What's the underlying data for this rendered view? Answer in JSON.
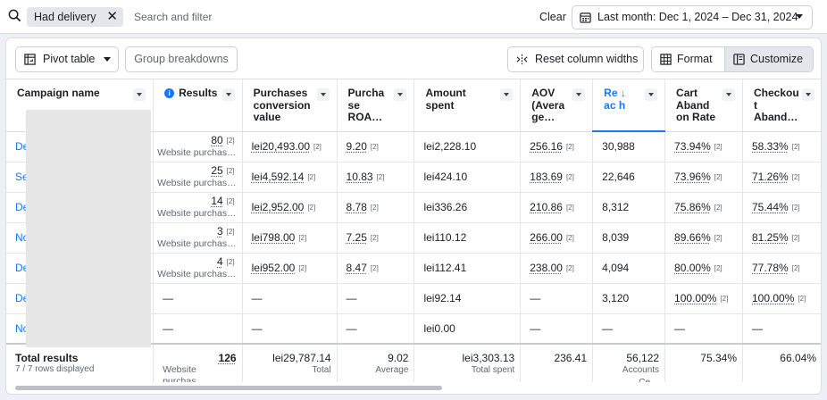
{
  "filter_bar": {
    "chip_label": "Had delivery",
    "chip_remove": "✕",
    "search_placeholder": "Search and filter",
    "clear_label": "Clear",
    "date_range": "Last month: Dec 1, 2024 – Dec 31, 2024"
  },
  "toolbar": {
    "pivot_label": "Pivot table",
    "group_label": "Group breakdowns",
    "reset_label": "Reset column widths",
    "format_label": "Format",
    "customize_label": "Customize"
  },
  "columns": [
    {
      "label": "Campaign name"
    },
    {
      "label": "Results"
    },
    {
      "label": "Purchases conversion value"
    },
    {
      "label": "Purcha se ROA…"
    },
    {
      "label": "Amount spent"
    },
    {
      "label": "AOV (Avera ge…"
    },
    {
      "label": "Re ↓ ac h"
    },
    {
      "label": "Cart Aband on Rate"
    },
    {
      "label": "Checkou t Aband…"
    }
  ],
  "rows": [
    {
      "name": "De",
      "results": "80",
      "results_sub": "Website purchas…",
      "pcv": "lei20,493.00",
      "roas": "9.20",
      "spent": "lei2,228.10",
      "aov": "256.16",
      "reach": "30,988",
      "cart": "73.94%",
      "checkout": "58.33%"
    },
    {
      "name": "Se",
      "results": "25",
      "results_sub": "Website purchas…",
      "pcv": "lei4,592.14",
      "roas": "10.83",
      "spent": "lei424.10",
      "aov": "183.69",
      "reach": "22,646",
      "cart": "73.96%",
      "checkout": "71.26%"
    },
    {
      "name": "De",
      "results": "14",
      "results_sub": "Website purchas…",
      "pcv": "lei2,952.00",
      "roas": "8.78",
      "spent": "lei336.26",
      "aov": "210.86",
      "reach": "8,312",
      "cart": "75.86%",
      "checkout": "75.44%"
    },
    {
      "name": "No",
      "results": "3",
      "results_sub": "Website purchas…",
      "pcv": "lei798.00",
      "roas": "7.25",
      "spent": "lei110.12",
      "aov": "266.00",
      "reach": "8,039",
      "cart": "89.66%",
      "checkout": "81.25%"
    },
    {
      "name": "De",
      "results": "4",
      "results_sub": "Website purchas…",
      "pcv": "lei952.00",
      "roas": "8.47",
      "spent": "lei112.41",
      "aov": "238.00",
      "reach": "4,094",
      "cart": "80.00%",
      "checkout": "77.78%"
    },
    {
      "name": "De",
      "results": "—",
      "results_sub": "",
      "pcv": "—",
      "roas": "—",
      "spent": "lei92.14",
      "aov": "—",
      "reach": "3,120",
      "cart": "100.00%",
      "checkout": "100.00%"
    },
    {
      "name": "No",
      "results": "—",
      "results_sub": "",
      "pcv": "—",
      "roas": "—",
      "spent": "lei0.00",
      "aov": "—",
      "reach": "—",
      "cart": "—",
      "checkout": "—"
    }
  ],
  "footnote": "[2]",
  "totals": {
    "label": "Total results",
    "rows_displayed": "7 / 7 rows displayed",
    "results": "126",
    "results_sub": "Website purchas…",
    "pcv": "lei29,787.14",
    "pcv_sub": "Total",
    "roas": "9.02",
    "roas_sub": "Average",
    "spent": "lei3,303.13",
    "spent_sub": "Total spent",
    "aov": "236.41",
    "reach": "56,122",
    "reach_sub": "Accounts Ce…",
    "cart": "75.34%",
    "checkout": "66.04%"
  }
}
